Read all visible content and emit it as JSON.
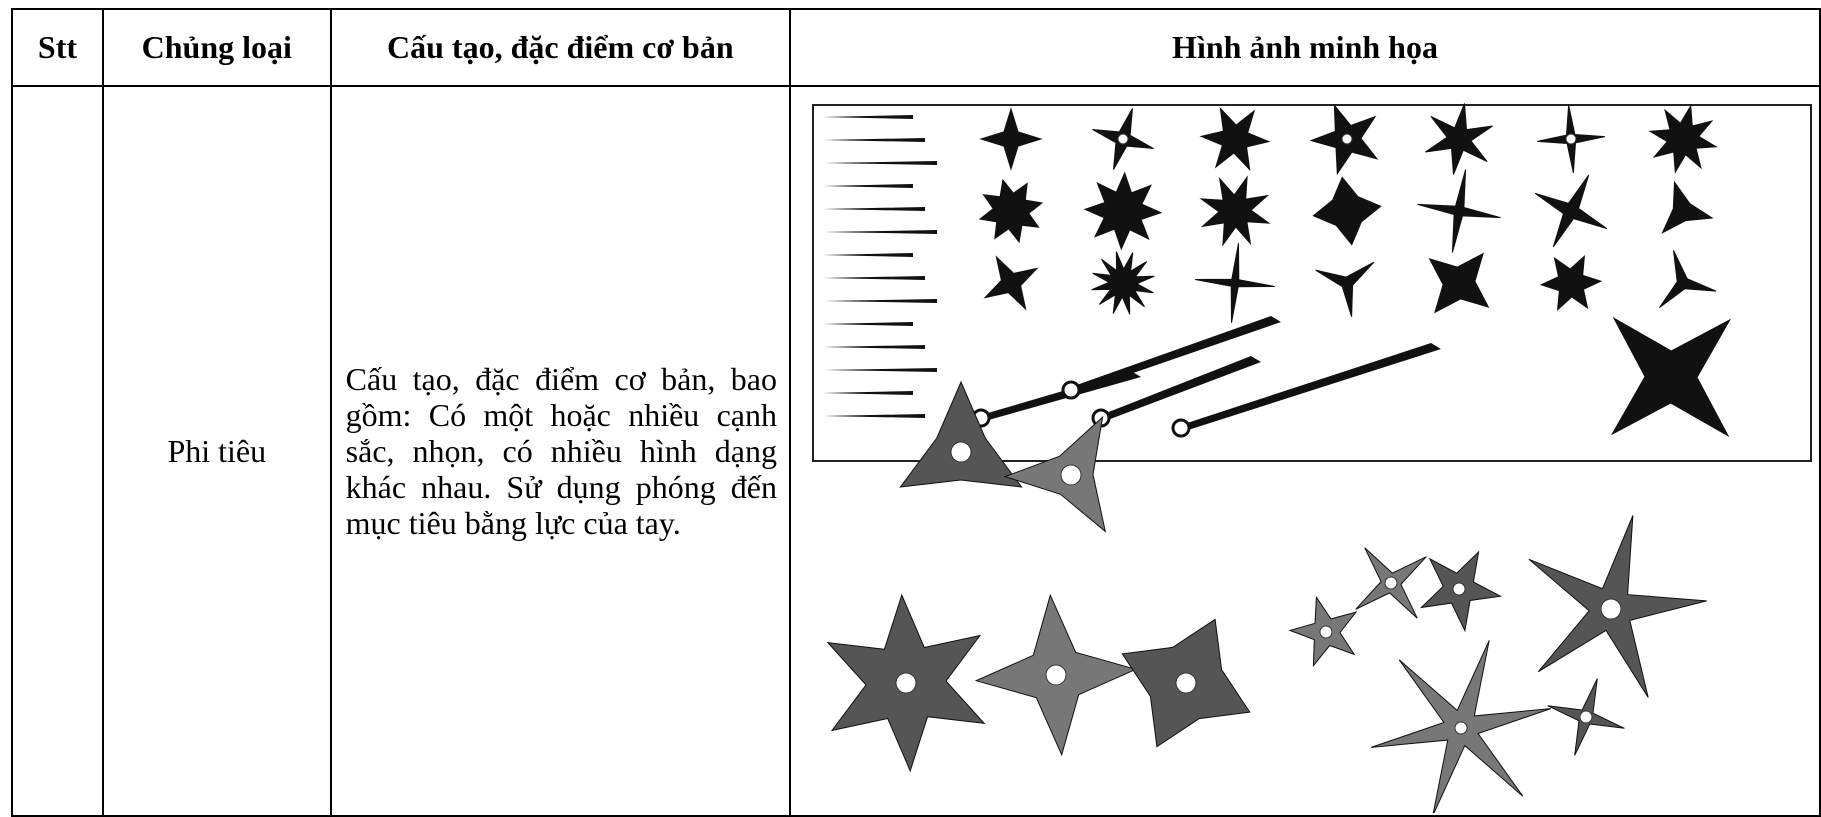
{
  "table": {
    "header": [
      "Stt",
      "Chủng loại",
      "Cấu tạo, đặc điểm cơ bản",
      "Hình ảnh minh họa"
    ],
    "rows": [
      {
        "type": "Phi tiêu",
        "description": "Cấu tạo, đặc điểm cơ bản, bao gồm: Có một hoặc nhiều cạnh sắc, nhọn, có nhiều hình dạng khác nhau. Sử dụng phóng đến mục tiêu bằng lực của tay."
      }
    ]
  }
}
